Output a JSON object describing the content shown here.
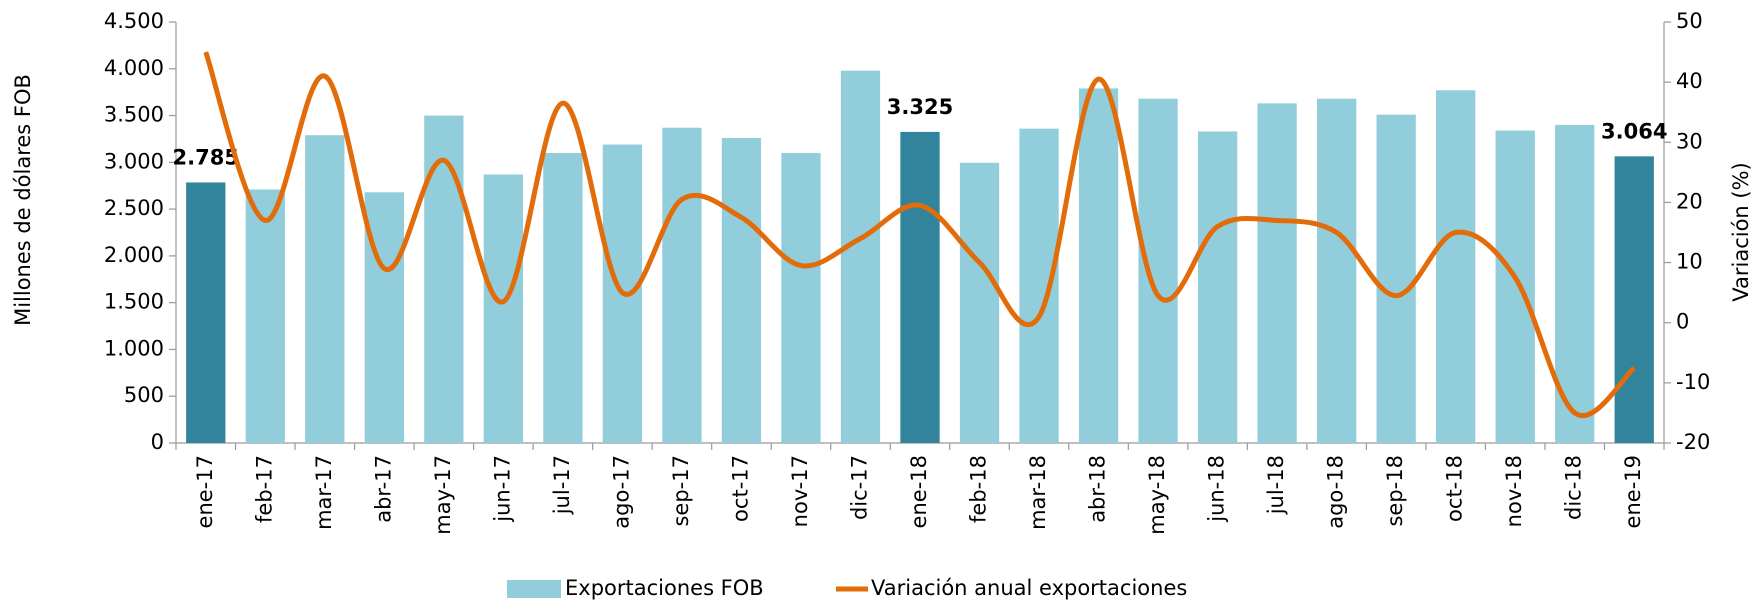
{
  "chart_data": {
    "type": "bar_line",
    "y_label": "Millones de dólares  FOB",
    "y2_label": "Variación (%)",
    "categories": [
      "ene-17",
      "feb-17",
      "mar-17",
      "abr-17",
      "may-17",
      "jun-17",
      "jul-17",
      "ago-17",
      "sep-17",
      "oct-17",
      "nov-17",
      "dic-17",
      "ene-18",
      "feb-18",
      "mar-18",
      "abr-18",
      "may-18",
      "jun-18",
      "jul-18",
      "ago-18",
      "sep-18",
      "oct-18",
      "nov-18",
      "dic-18",
      "ene-19"
    ],
    "series": [
      {
        "name": "Exportaciones FOB",
        "type": "bar",
        "color": "#92cddc",
        "colors": [
          "#31849b",
          "#92cddc",
          "#92cddc",
          "#92cddc",
          "#92cddc",
          "#92cddc",
          "#92cddc",
          "#92cddc",
          "#92cddc",
          "#92cddc",
          "#92cddc",
          "#92cddc",
          "#31849b",
          "#92cddc",
          "#92cddc",
          "#92cddc",
          "#92cddc",
          "#92cddc",
          "#92cddc",
          "#92cddc",
          "#92cddc",
          "#92cddc",
          "#92cddc",
          "#92cddc",
          "#31849b"
        ],
        "values": [
          2785,
          2710,
          3290,
          2680,
          3500,
          2870,
          3100,
          3190,
          3370,
          3260,
          3100,
          3980,
          3325,
          2995,
          3360,
          3790,
          3680,
          3330,
          3630,
          3680,
          3510,
          3770,
          3340,
          3400,
          3064
        ],
        "value_labels": [
          "2.785",
          null,
          null,
          null,
          null,
          null,
          null,
          null,
          null,
          null,
          null,
          null,
          "3.325",
          null,
          null,
          null,
          null,
          null,
          null,
          null,
          null,
          null,
          null,
          null,
          "3.064"
        ]
      },
      {
        "name": "Variación anual exportaciones",
        "type": "line",
        "axis": "y2",
        "color": "#e36c0a",
        "values": [
          45,
          17,
          41,
          9,
          27,
          3.5,
          36.5,
          5,
          20.5,
          17.5,
          9.5,
          14,
          19.5,
          10,
          1,
          40.5,
          4.5,
          16,
          17,
          15,
          4.5,
          15,
          7.5,
          -15,
          -7.5
        ]
      }
    ],
    "ylim": [
      0,
      4500
    ],
    "yticks": [
      0,
      500,
      {
        "value": 1000,
        "label": "1.000"
      },
      {
        "value": 1500,
        "label": "1.500"
      },
      {
        "value": 2000,
        "label": "2.000"
      },
      {
        "value": 2500,
        "label": "2.500"
      },
      {
        "value": 3000,
        "label": "3.000"
      },
      {
        "value": 3500,
        "label": "3.500"
      },
      {
        "value": 4000,
        "label": "4.000"
      },
      {
        "value": 4500,
        "label": "4.500"
      }
    ],
    "y2lim": [
      -20,
      50
    ],
    "y2ticks": [
      -20,
      -10,
      0,
      10,
      20,
      30,
      40,
      50
    ],
    "grid": false,
    "legend": "bottom"
  }
}
